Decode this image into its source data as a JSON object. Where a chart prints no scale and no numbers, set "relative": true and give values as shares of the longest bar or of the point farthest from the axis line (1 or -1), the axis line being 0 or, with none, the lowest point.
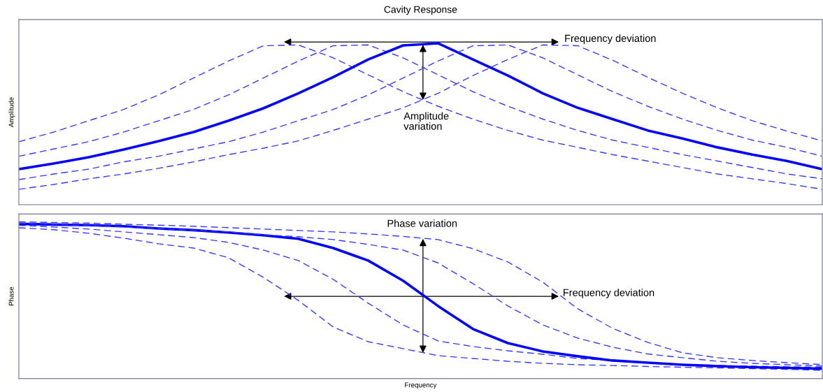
{
  "chart_data": [
    {
      "type": "line",
      "title": "Cavity Response",
      "ylabel": "Amplitude",
      "relative": true,
      "tick_labels": false,
      "marker": "none",
      "categories": [
        null,
        null,
        null,
        null,
        null,
        null,
        null,
        null,
        null,
        null,
        null,
        null,
        null,
        null,
        null,
        null,
        null,
        null,
        null,
        null,
        null,
        null,
        null,
        null
      ],
      "series": [
        {
          "color": "#3a3aff",
          "line_style": "dashed",
          "values": [
            0.39,
            0.45,
            0.52,
            0.59,
            0.68,
            0.785,
            0.89,
            0.985,
            0.99,
            0.91,
            0.805,
            0.7,
            0.61,
            0.53,
            0.46,
            0.4,
            0.355,
            0.31,
            0.27,
            0.23,
            0.19,
            0.16,
            0.13,
            0.095
          ]
        },
        {
          "color": "#3a3aff",
          "line_style": "dashed",
          "values": [
            0.3,
            0.345,
            0.39,
            0.45,
            0.52,
            0.59,
            0.68,
            0.785,
            0.89,
            0.985,
            0.99,
            0.91,
            0.805,
            0.7,
            0.61,
            0.53,
            0.46,
            0.4,
            0.355,
            0.31,
            0.27,
            0.23,
            0.19,
            0.16
          ]
        },
        {
          "color": "#0000ff",
          "line_style": "solid",
          "values": [
            0.22,
            0.255,
            0.294,
            0.342,
            0.394,
            0.45,
            0.52,
            0.597,
            0.69,
            0.79,
            0.9,
            0.987,
            1.0,
            0.9,
            0.8,
            0.69,
            0.6,
            0.53,
            0.46,
            0.41,
            0.355,
            0.31,
            0.27,
            0.22
          ]
        },
        {
          "color": "#3a3aff",
          "line_style": "dashed",
          "values": [
            0.155,
            0.19,
            0.22,
            0.265,
            0.3,
            0.345,
            0.39,
            0.45,
            0.52,
            0.59,
            0.68,
            0.785,
            0.89,
            0.985,
            0.99,
            0.91,
            0.805,
            0.7,
            0.61,
            0.53,
            0.46,
            0.4,
            0.355,
            0.3
          ]
        },
        {
          "color": "#3a3aff",
          "line_style": "dashed",
          "values": [
            0.095,
            0.125,
            0.16,
            0.19,
            0.225,
            0.265,
            0.31,
            0.35,
            0.395,
            0.46,
            0.53,
            0.6,
            0.69,
            0.8,
            0.9,
            0.99,
            0.985,
            0.895,
            0.79,
            0.69,
            0.6,
            0.52,
            0.455,
            0.395
          ]
        }
      ],
      "annotations": [
        "Frequency deviation",
        "Amplitude\nvariation"
      ]
    },
    {
      "type": "line",
      "ylabel": "Phase",
      "xlabel": "Frequency",
      "relative": true,
      "tick_labels": false,
      "marker": "none",
      "categories": [
        null,
        null,
        null,
        null,
        null,
        null,
        null,
        null,
        null,
        null,
        null,
        null,
        null,
        null,
        null,
        null,
        null,
        null,
        null,
        null,
        null,
        null,
        null,
        null
      ],
      "series": [
        {
          "color": "#3a3aff",
          "line_style": "dashed",
          "values": [
            0.962,
            0.95,
            0.927,
            0.896,
            0.86,
            0.833,
            0.771,
            0.646,
            0.499,
            0.329,
            0.235,
            0.191,
            0.146,
            0.128,
            0.11,
            0.097,
            0.088,
            0.083,
            0.077,
            0.072,
            0.068,
            0.063,
            0.059,
            0.052
          ]
        },
        {
          "color": "#3a3aff",
          "line_style": "dashed",
          "values": [
            0.978,
            0.967,
            0.954,
            0.936,
            0.918,
            0.9,
            0.869,
            0.82,
            0.753,
            0.633,
            0.481,
            0.342,
            0.24,
            0.204,
            0.177,
            0.155,
            0.128,
            0.115,
            0.101,
            0.088,
            0.083,
            0.079,
            0.075,
            0.072
          ]
        },
        {
          "color": "#0000ff",
          "line_style": "solid",
          "values": [
            0.987,
            0.983,
            0.979,
            0.972,
            0.958,
            0.947,
            0.932,
            0.914,
            0.892,
            0.833,
            0.753,
            0.624,
            0.463,
            0.316,
            0.226,
            0.173,
            0.142,
            0.115,
            0.101,
            0.088,
            0.079,
            0.072,
            0.068,
            0.063
          ]
        },
        {
          "color": "#3a3aff",
          "line_style": "dashed",
          "values": [
            0.992,
            0.985,
            0.976,
            0.967,
            0.958,
            0.947,
            0.936,
            0.918,
            0.905,
            0.887,
            0.856,
            0.82,
            0.738,
            0.606,
            0.463,
            0.342,
            0.258,
            0.2,
            0.157,
            0.133,
            0.11,
            0.097,
            0.088,
            0.08
          ]
        },
        {
          "color": "#3a3aff",
          "line_style": "dashed",
          "values": [
            1.0,
            0.996,
            0.992,
            0.985,
            0.979,
            0.972,
            0.963,
            0.954,
            0.945,
            0.936,
            0.923,
            0.907,
            0.887,
            0.829,
            0.744,
            0.615,
            0.445,
            0.32,
            0.231,
            0.164,
            0.133,
            0.115,
            0.101,
            0.089
          ]
        }
      ],
      "annotations": [
        "Phase variation",
        "Frequency deviation"
      ]
    }
  ]
}
